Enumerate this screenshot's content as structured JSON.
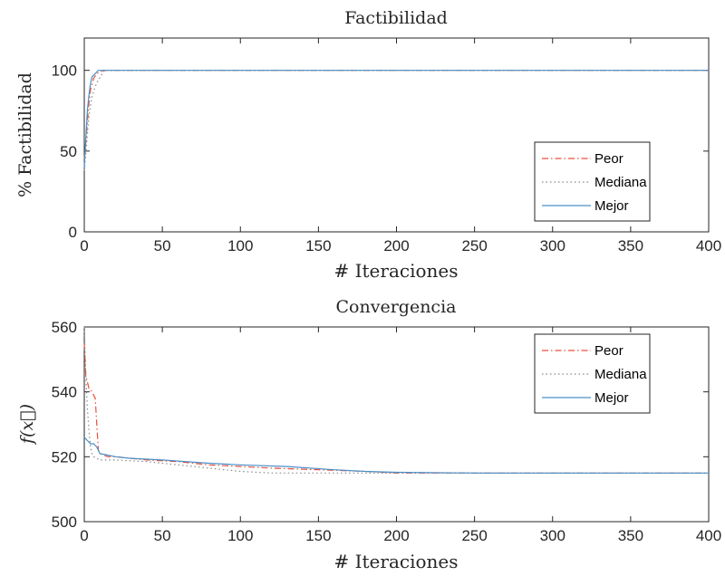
{
  "chart_data": [
    {
      "type": "line",
      "title": "Factibilidad",
      "xlabel": "# Iteraciones",
      "ylabel": "% Factibilidad",
      "xlim": [
        0,
        400
      ],
      "ylim": [
        0,
        120
      ],
      "xticks": [
        "0",
        "50",
        "100",
        "150",
        "200",
        "250",
        "300",
        "350",
        "400"
      ],
      "yticks": [
        "0",
        "50",
        "100"
      ],
      "legend_position": "bottom-right",
      "grid": false,
      "series": [
        {
          "name": "Peor",
          "color": "#e8503a",
          "dash": "dashdot",
          "x": [
            0,
            1,
            2,
            3,
            4,
            6,
            8,
            10,
            12,
            400
          ],
          "y": [
            45,
            55,
            68,
            80,
            88,
            95,
            98,
            99,
            100,
            100
          ]
        },
        {
          "name": "Mediana",
          "color": "#8a8a8a",
          "dash": "dotted",
          "x": [
            0,
            1,
            2,
            3,
            5,
            7,
            9,
            11,
            13,
            400
          ],
          "y": [
            38,
            48,
            60,
            72,
            84,
            90,
            94,
            97,
            100,
            100
          ]
        },
        {
          "name": "Mejor",
          "color": "#4a90c8",
          "dash": "solid",
          "x": [
            0,
            1,
            2,
            3,
            4,
            5,
            7,
            9,
            400
          ],
          "y": [
            40,
            58,
            75,
            85,
            92,
            96,
            98,
            100,
            100
          ]
        }
      ]
    },
    {
      "type": "line",
      "title": "Convergencia",
      "xlabel": "# Iteraciones",
      "ylabel": "f(x⃗)",
      "xlim": [
        0,
        400
      ],
      "ylim": [
        500,
        560
      ],
      "xticks": [
        "0",
        "50",
        "100",
        "150",
        "200",
        "250",
        "300",
        "350",
        "400"
      ],
      "yticks": [
        "500",
        "520",
        "540",
        "560"
      ],
      "legend_position": "top-right",
      "grid": false,
      "series": [
        {
          "name": "Peor",
          "color": "#e8503a",
          "dash": "dashdot",
          "x": [
            0,
            1,
            3,
            5,
            7,
            8,
            9,
            10,
            15,
            20,
            40,
            60,
            80,
            100,
            120,
            150,
            180,
            200,
            250,
            300,
            400
          ],
          "y": [
            555,
            545,
            541,
            540,
            538,
            530,
            522,
            521,
            520,
            520,
            519,
            518.5,
            517.5,
            517,
            516.5,
            516,
            515.5,
            515,
            515,
            515,
            515
          ]
        },
        {
          "name": "Mediana",
          "color": "#8a8a8a",
          "dash": "dotted",
          "x": [
            0,
            1,
            2,
            3,
            4,
            5,
            6,
            10,
            20,
            40,
            60,
            80,
            100,
            120,
            150,
            200,
            250,
            300,
            400
          ],
          "y": [
            560,
            545,
            535,
            528,
            523,
            521,
            520,
            519,
            519,
            518.5,
            517.5,
            516.5,
            515.5,
            515,
            515,
            515,
            515,
            515,
            515
          ]
        },
        {
          "name": "Mejor",
          "color": "#4a90c8",
          "dash": "solid",
          "x": [
            0,
            2,
            4,
            6,
            8,
            10,
            15,
            20,
            30,
            50,
            80,
            100,
            130,
            160,
            180,
            200,
            250,
            300,
            400
          ],
          "y": [
            526,
            525,
            524,
            524,
            523,
            521,
            520.5,
            520,
            519.5,
            519,
            518,
            517.5,
            517,
            516,
            515.5,
            515.2,
            515,
            515,
            515
          ]
        }
      ]
    }
  ]
}
